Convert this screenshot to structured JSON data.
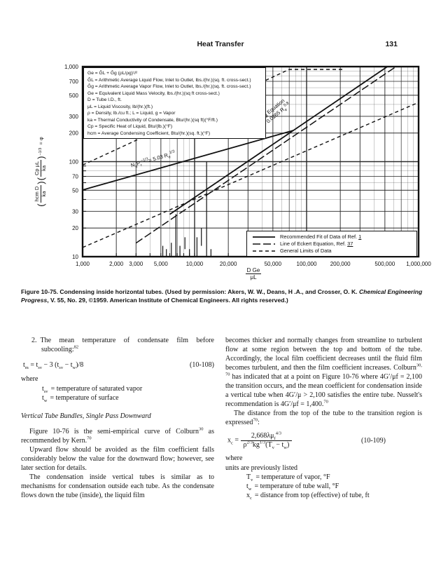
{
  "header": {
    "title": "Heat Transfer",
    "page_number": "131"
  },
  "chart_data": {
    "type": "line",
    "title": "Condensing inside horizontal tubes (Figure 10-75)",
    "x_axis": {
      "scale": "log",
      "range": [
        1000,
        1000000
      ],
      "label_num": "D Ge",
      "label_den": "μL",
      "ticks": [
        {
          "v": 1000,
          "label": "1,000"
        },
        {
          "v": 2000,
          "label": "2,000"
        },
        {
          "v": 3000,
          "label": "3,000"
        },
        {
          "v": 5000,
          "label": "5,000"
        },
        {
          "v": 10000,
          "label": "10,000"
        },
        {
          "v": 20000,
          "label": "20,000"
        },
        {
          "v": 50000,
          "label": "50,000"
        },
        {
          "v": 100000,
          "label": "100,000"
        },
        {
          "v": 200000,
          "label": "200,000"
        },
        {
          "v": 500000,
          "label": "500,000"
        },
        {
          "v": 1000000,
          "label": "1,000,000"
        }
      ]
    },
    "y_axis": {
      "scale": "log",
      "range": [
        10,
        1000
      ],
      "label": "(hcm D/ka)(Cp μL/ka)^-1/3 = φ",
      "label_parts": {
        "open": "(",
        "f1_num": "hcm D",
        "f1_den": "ka",
        "close": ")",
        "open2": "(",
        "f2_num": "Cp μL",
        "f2_den": "ka",
        "close2": ")",
        "exp": "−1/3",
        "tail": "= φ"
      },
      "ticks": [
        {
          "v": 1000,
          "label": "1,000"
        },
        {
          "v": 700,
          "label": "700"
        },
        {
          "v": 500,
          "label": "500"
        },
        {
          "v": 300,
          "label": "300"
        },
        {
          "v": 200,
          "label": "200"
        },
        {
          "v": 100,
          "label": "100"
        },
        {
          "v": 70,
          "label": "70"
        },
        {
          "v": 50,
          "label": "50"
        },
        {
          "v": 30,
          "label": "30"
        },
        {
          "v": 20,
          "label": "20"
        },
        {
          "v": 10,
          "label": "10"
        }
      ]
    },
    "series": [
      {
        "name": "Recommended fit of data — laminar branch, NuPr−1/3 = 5.03Re1/3",
        "style": "solid",
        "points": [
          [
            1000,
            50.3
          ],
          [
            76200,
            213
          ]
        ]
      },
      {
        "name": "Recommended fit / correlating equation, NuPr−1/3 = 0.0265Re0.8",
        "style": "solid",
        "points": [
          [
            6000,
            27.9
          ],
          [
            526000,
            1000
          ]
        ]
      },
      {
        "name": "Line of Eckert equation",
        "style": "long-dash",
        "points": [
          [
            3000,
            13.9
          ],
          [
            628000,
            1000
          ]
        ]
      },
      {
        "name": "General limits of data — upper",
        "style": "dash",
        "points": [
          [
            1000,
            92
          ],
          [
            70000,
            935
          ],
          [
            220000,
            935
          ]
        ]
      },
      {
        "name": "General limits of data — lower",
        "style": "dash",
        "points": [
          [
            1000,
            12.5
          ],
          [
            1000000,
            420
          ]
        ]
      }
    ],
    "data_range_marks": [
      {
        "x": 5200,
        "y": [
          10,
          13
        ]
      },
      {
        "x": 5600,
        "y": [
          10,
          12
        ]
      },
      {
        "x": 6200,
        "y": [
          10,
          14
        ]
      },
      {
        "x": 6800,
        "y": [
          10,
          28
        ]
      },
      {
        "x": 7400,
        "y": [
          10,
          13
        ]
      },
      {
        "x": 8200,
        "y": [
          12,
          16
        ]
      },
      {
        "x": 9000,
        "y": [
          10,
          12
        ]
      },
      {
        "x": 10500,
        "y": [
          10,
          16
        ]
      },
      {
        "x": 11500,
        "y": [
          13,
          20
        ]
      },
      {
        "x": 12800,
        "y": [
          10,
          100
        ]
      },
      {
        "x": 14000,
        "y": [
          10,
          12
        ]
      }
    ],
    "annotations": [
      {
        "x": 45000,
        "y": 290,
        "rotation": -39,
        "lines": [
          [
            {
              "t": "Correlating Equation"
            }
          ],
          [
            {
              "t": "N"
            },
            {
              "sub": "u"
            },
            {
              "t": "P"
            },
            {
              "sub": "r"
            },
            {
              "sup": "−1/3"
            },
            {
              "t": "= 0.0265 R"
            },
            {
              "sub": "e"
            },
            {
              "sup": "0.8"
            }
          ]
        ]
      },
      {
        "x": 4300,
        "y": 97,
        "rotation": -16,
        "lines": [
          [
            {
              "t": "N"
            },
            {
              "sub": "u"
            },
            {
              "t": "P"
            },
            {
              "sub": "r"
            },
            {
              "sup": "−1/3"
            },
            {
              "t": "= 5.03 R"
            },
            {
              "sub": "e"
            },
            {
              "sup": "1/3"
            }
          ]
        ]
      }
    ],
    "defs_box": {
      "lines": [
        "Ge = ḠL + Ḡg (ρL/ρg)¹/²",
        "ḠL = Arithmetic Average Liquid Flow, Inlet to Outlet, lbs./(hr.)(sq. ft. cross-sect.)",
        "Ḡg = Arithmetic Average Vapor Flow, Inlet to Outlet, lbs./(hr.)(sq. ft. cross-sect.)",
        "Ge = Equivalent Liquid Mass Velocity, lbs./(hr.)(sq ft cross-sect.)",
        "D = Tube I.D., ft.",
        "μL = Liquid Viscosity, lb/(hr.)(ft.)",
        "ρ = Density, lb./cu ft.; L = Liquid, g = Vapor",
        "ka = Thermal Conductivity of Condensate, Btu/(hr.)(sq ft)(°F/ft.)",
        "Cp = Specific Heat of Liquid, Btu/(lb.)(°F)",
        "hcm = Average Condensing Coefficient, Btu/(hr.)(sq. ft.)(°F)"
      ]
    },
    "legend": {
      "position": "bottom-right-inside",
      "rows": [
        {
          "style": "solid",
          "label": "Recommended Fit of Data of Ref. ",
          "ref": "1"
        },
        {
          "style": "long-dash",
          "label": "Line of Eckert Equation, Ref. ",
          "ref": "37"
        },
        {
          "style": "dash",
          "label": "General Limits of Data",
          "ref": ""
        }
      ]
    }
  },
  "caption": {
    "bold": "Figure 10-75.",
    "text1": " Condensing inside horizontal tubes. (Used by permission: Akers, W. W., Deans, H .A., and Crosser, O. K. ",
    "italic": "Chemical Engineering Progress",
    "text2": ", V. 55, No. 29, ©1959. American Institute of Chemical Engineers. All rights reserved.)"
  },
  "body": {
    "left": {
      "item_number": "2.",
      "intro": "The mean temperature of condensate film before subcooling:",
      "intro_sup": "82",
      "eq108": {
        "p1": "t",
        "s1": "m",
        "p2": " = t",
        "s2": "sv",
        "p3": " − 3 (t",
        "s3": "sv",
        "p4": " − t",
        "s4": "w",
        "p5": ")/8",
        "tag": "(10-108)"
      },
      "where_label": "where",
      "defs": [
        {
          "s": "t",
          "sub": "sv",
          "text": "= temperature of saturated vapor"
        },
        {
          "s": "t",
          "sub": "w",
          "text": "= temperature of surface"
        }
      ],
      "heading": "Vertical Tube Bundles, Single Pass Downward",
      "p1a": "Figure 10-76 is the semi-empirical curve of Colburn",
      "p1_sup1": "30",
      "p1b": " as recommended by Kern.",
      "p1_sup2": "70",
      "p2": "Upward flow should be avoided as the film coefficient falls considerably below the value for the downward flow; however, see later section for details.",
      "p3": "The condensation inside vertical tubes is similar as to mechanisms for condensation outside each tube. As the condensate flows down the tube (inside), the liquid film"
    },
    "right": {
      "p4a": "becomes thicker and normally changes from streamline to turbulent flow at some region between the top and bottom of the tube. Accordingly, the local film coefficient decreases until the fluid film becomes turbulent, and then the film coefficient increases. Colburn",
      "p4_sup1": "30, 70",
      "p4b": " has indicated that at a point on Figure 10-76 where 4G′/μf = 2,100 the transition occurs, and the mean coefficient for condensation inside a vertical tube when 4G′/μ > 2,100 satisfies the entire tube. Nusselt's recommendation is 4G′/μf = 1,400.",
      "p4_sup2": "70",
      "p5a": "The distance from the top of the tube to the transition region is expressed",
      "p5_sup": "70",
      "p5b": ":",
      "eq109": {
        "lhs": "x",
        "lhs_sub": "c",
        "eq_sign": " = ",
        "num1": "2,668λμ",
        "num_sub": "f",
        "num_sup": "4/3",
        "den1": "ρ",
        "den_sup1": "2/3",
        "den2": "kg",
        "den_sup2": "1/3",
        "den3": "(T",
        "den_sub1": "v",
        "den4": " − t",
        "den_sub2": "w",
        "den5": ")",
        "tag": "(10-109)"
      },
      "where_label": "where",
      "units_note": "units are previously listed",
      "defs": [
        {
          "s": "T",
          "sub": "v",
          "text": "= temperature of vapor, °F"
        },
        {
          "s": "t",
          "sub": "w",
          "text": "= temperature of tube wall, °F"
        },
        {
          "s": "x",
          "sub": "c",
          "text": "= distance from top (effective) of tube, ft"
        }
      ]
    }
  }
}
